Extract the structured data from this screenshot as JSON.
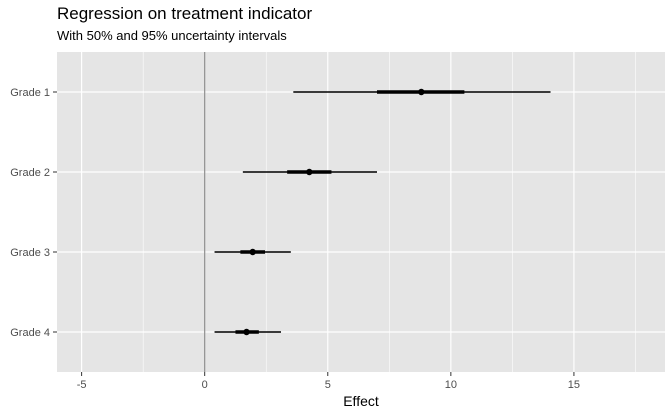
{
  "chart_data": {
    "type": "interval",
    "title": "Regression on treatment indicator",
    "subtitle": "With 50% and 95% uncertainty intervals",
    "xlabel": "Effect",
    "ylabel": "",
    "xlim": [
      -6.0,
      18.7
    ],
    "xticks": [
      -5,
      0,
      5,
      10,
      15
    ],
    "xtick_labels": [
      "-5",
      "0",
      "5",
      "10",
      "15"
    ],
    "reference_line_x": 0,
    "grid": true,
    "categories": [
      "Grade 1",
      "Grade 2",
      "Grade 3",
      "Grade 4"
    ],
    "estimates": [
      8.8,
      4.25,
      1.95,
      1.7
    ],
    "interval_50": [
      [
        7.0,
        10.55
      ],
      [
        3.35,
        5.15
      ],
      [
        1.45,
        2.45
      ],
      [
        1.25,
        2.2
      ]
    ],
    "interval_95": [
      [
        3.6,
        14.05
      ],
      [
        1.55,
        7.0
      ],
      [
        0.4,
        3.5
      ],
      [
        0.4,
        3.1
      ]
    ],
    "colors": {
      "panel": "#e5e5e5",
      "grid": "#ffffff",
      "marks": "#000000",
      "reference_line": "#8c8c8c",
      "tick_label": "#4d4d4d"
    }
  }
}
